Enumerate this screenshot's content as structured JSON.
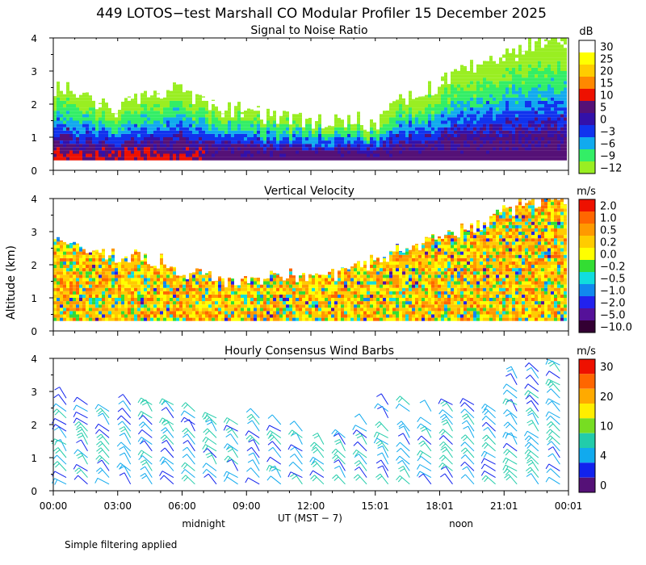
{
  "chart_data": {
    "type": "heatmap",
    "title": "449 LOTOS−test Marshall CO Modular Profiler 15 December 2025",
    "ylabel": "Altitude (km)",
    "xlabel": "UT  (MST − 7)",
    "x_sublabels": [
      {
        "text": "midnight",
        "hour": 7
      },
      {
        "text": "noon",
        "hour": 19
      }
    ],
    "xlim_hours": [
      0,
      24
    ],
    "ylim_km": [
      0,
      4
    ],
    "x_ticks": [
      {
        "hour": 0,
        "label": "00:00"
      },
      {
        "hour": 3,
        "label": "03:00"
      },
      {
        "hour": 6,
        "label": "06:00"
      },
      {
        "hour": 9,
        "label": "09:00"
      },
      {
        "hour": 12,
        "label": "12:00"
      },
      {
        "hour": 15,
        "label": "15:01"
      },
      {
        "hour": 18,
        "label": "18:01"
      },
      {
        "hour": 21,
        "label": "21:01"
      },
      {
        "hour": 24,
        "label": "00:01"
      }
    ],
    "y_ticks": [
      "0",
      "1",
      "2",
      "3",
      "4"
    ],
    "note": "Simple filtering applied",
    "panels": [
      {
        "id": "snr",
        "title": "Signal to Noise Ratio",
        "unit": "dB",
        "kind": "heatmap",
        "colorbar": [
          {
            "label": "30",
            "color": "#ffffff"
          },
          {
            "label": "25",
            "color": "#ffff00"
          },
          {
            "label": "20",
            "color": "#ffcc00"
          },
          {
            "label": "15",
            "color": "#ff8800"
          },
          {
            "label": "10",
            "color": "#ee1100"
          },
          {
            "label": "5",
            "color": "#551177"
          },
          {
            "label": "0",
            "color": "#3311aa"
          },
          {
            "label": "−3",
            "color": "#1133ee"
          },
          {
            "label": "−6",
            "color": "#11aaee"
          },
          {
            "label": "−9",
            "color": "#33ee66"
          },
          {
            "label": "−12",
            "color": "#99ee22"
          }
        ],
        "coverage_top_km": [
          2.5,
          2.4,
          2.0,
          1.9,
          2.2,
          2.3,
          2.5,
          2.0,
          1.9,
          1.8,
          1.7,
          1.6,
          1.5,
          1.5,
          1.6,
          1.3,
          2.1,
          2.3,
          2.6,
          3.0,
          3.3,
          3.5,
          3.8,
          4.0
        ],
        "notes": "Shading from strongest at bottom (red/purple, ~5–10 dB) to weakest at top (green, ~−12 dB); white = no data"
      },
      {
        "id": "vv",
        "title": "Vertical Velocity",
        "unit": "m/s",
        "kind": "heatmap",
        "colorbar": [
          {
            "label": "2.0",
            "color": "#ee1100"
          },
          {
            "label": "1.0",
            "color": "#ff6600"
          },
          {
            "label": "0.5",
            "color": "#ff9900"
          },
          {
            "label": "0.2",
            "color": "#ffcc00"
          },
          {
            "label": "0.0",
            "color": "#ffff00"
          },
          {
            "label": "−0.2",
            "color": "#33dd33"
          },
          {
            "label": "−0.5",
            "color": "#11dddd"
          },
          {
            "label": "−1.0",
            "color": "#1188ee"
          },
          {
            "label": "−2.0",
            "color": "#2222ee"
          },
          {
            "label": "−5.0",
            "color": "#551199"
          },
          {
            "label": "−10.0",
            "color": "#330033"
          }
        ],
        "coverage_top_km": [
          2.9,
          2.6,
          2.4,
          2.3,
          2.2,
          2.1,
          1.8,
          1.6,
          1.5,
          1.5,
          1.6,
          1.7,
          1.5,
          1.7,
          1.9,
          2.1,
          2.4,
          2.6,
          2.8,
          3.0,
          3.3,
          3.6,
          3.8,
          4.0
        ],
        "notes": "Mostly yellow/orange (0.0 to 1.0 m/s) with green and cyan streaks (−0.2 to −0.5 m/s)"
      },
      {
        "id": "wind",
        "title": "Hourly Consensus Wind Barbs",
        "unit": "m/s",
        "kind": "wind-barbs",
        "colorbar": [
          {
            "label": "30",
            "color": "#ee1100"
          },
          {
            "label": "",
            "color": "#ff6600"
          },
          {
            "label": "20",
            "color": "#ffaa00"
          },
          {
            "label": "",
            "color": "#ffee00"
          },
          {
            "label": "10",
            "color": "#77dd22"
          },
          {
            "label": "",
            "color": "#22ccaa"
          },
          {
            "label": "4",
            "color": "#11aaee"
          },
          {
            "label": "",
            "color": "#1122ee"
          },
          {
            "label": "0",
            "color": "#551177"
          }
        ],
        "barb_top_km": [
          2.9,
          2.7,
          2.4,
          2.6,
          2.8,
          2.7,
          2.5,
          2.3,
          2.1,
          2.2,
          2.0,
          1.9,
          1.4,
          1.6,
          2.0,
          2.7,
          2.6,
          2.4,
          2.7,
          2.6,
          2.4,
          3.6,
          3.8,
          3.9
        ],
        "notes": "Hourly wind barbs, roughly west to north-west winds, speeds mostly 4–10 m/s"
      }
    ]
  }
}
